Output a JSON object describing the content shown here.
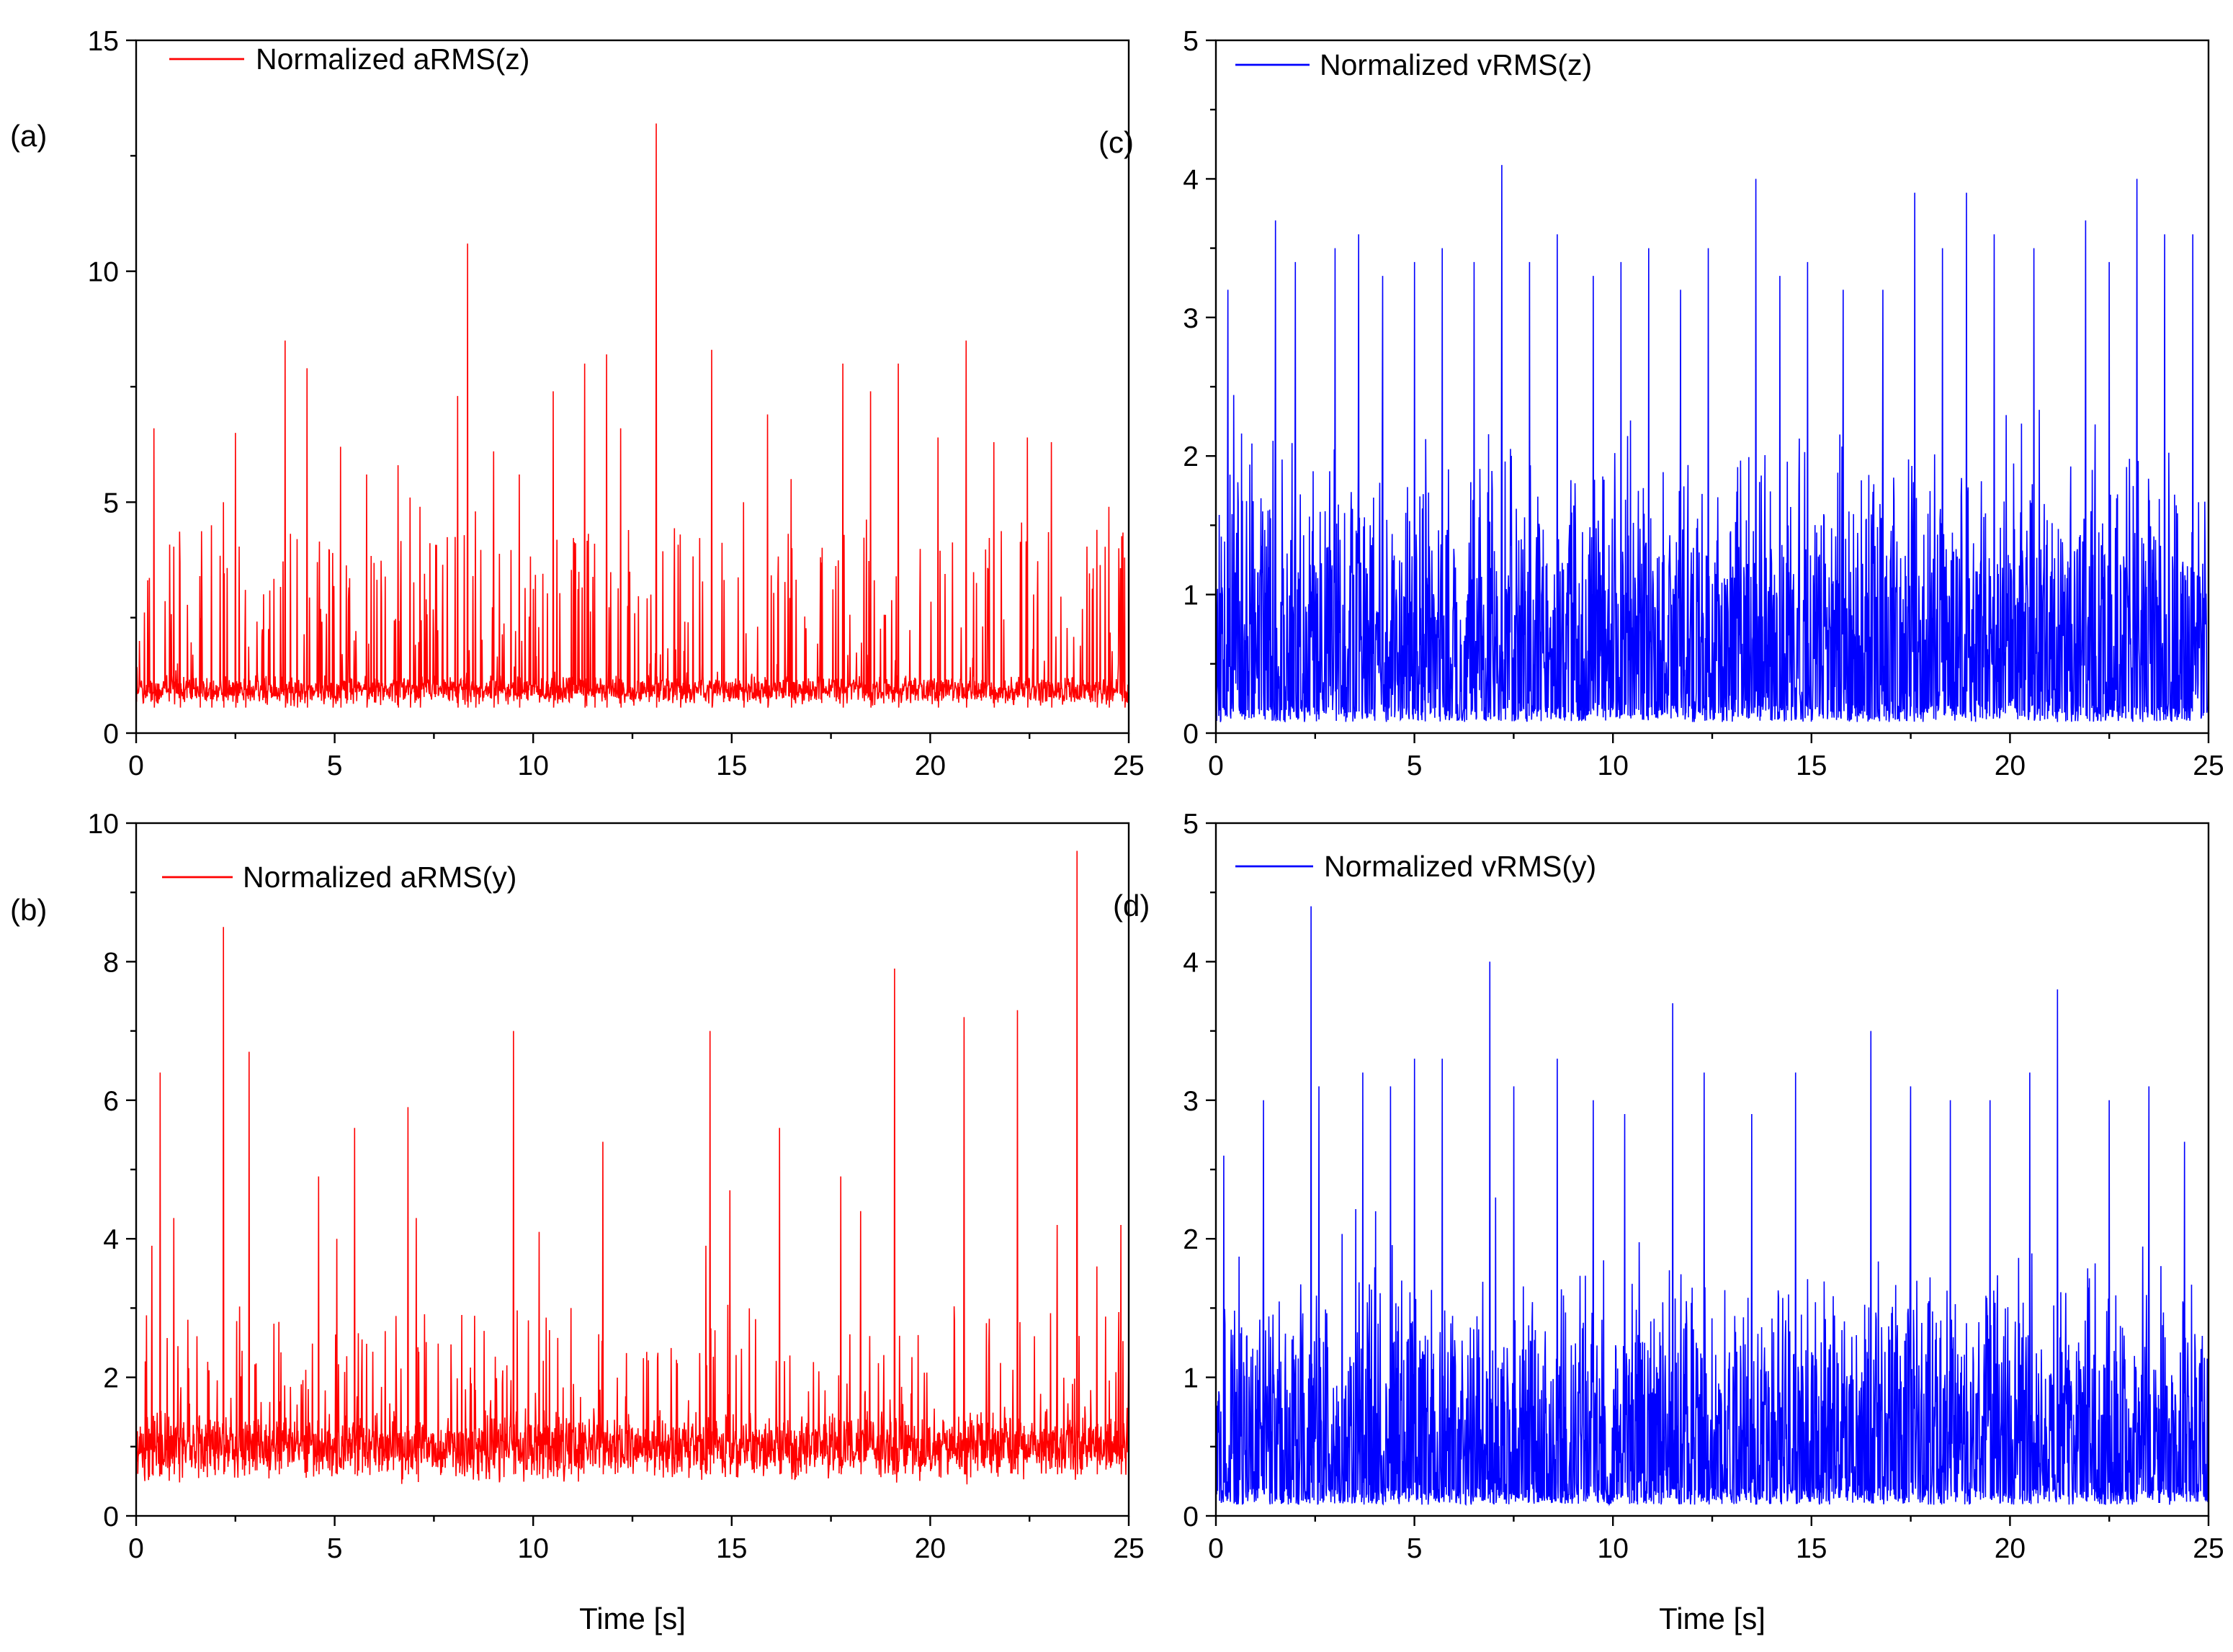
{
  "chart_data": [
    {
      "id": "a",
      "panel_label": "(a)",
      "type": "line",
      "title": "",
      "xlabel": "",
      "ylabel": "",
      "xlim": [
        0,
        25
      ],
      "ylim": [
        0,
        15
      ],
      "xticks": [
        "0",
        "5",
        "10",
        "15",
        "20",
        "25"
      ],
      "yticks": [
        "0",
        "5",
        "10",
        "15"
      ],
      "legend": "top-left",
      "color": "#ff0000",
      "signal": {
        "baseline": 0.92,
        "noise_amp": 0.35,
        "spike_rate": 0.12,
        "spike_max": 3.5,
        "seed": 11
      },
      "series": [
        {
          "name": "Normalized aRMS(z)",
          "peaks": [
            [
              0.45,
              6.6
            ],
            [
              1.1,
              3.7
            ],
            [
              1.6,
              3.4
            ],
            [
              1.9,
              4.5
            ],
            [
              2.2,
              5.0
            ],
            [
              2.5,
              6.5
            ],
            [
              2.75,
              3.1
            ],
            [
              3.75,
              8.5
            ],
            [
              4.05,
              4.2
            ],
            [
              4.3,
              7.9
            ],
            [
              4.95,
              3.9
            ],
            [
              5.15,
              6.2
            ],
            [
              5.8,
              5.6
            ],
            [
              6.6,
              5.8
            ],
            [
              6.9,
              5.1
            ],
            [
              7.15,
              4.9
            ],
            [
              8.1,
              7.3
            ],
            [
              8.35,
              10.6
            ],
            [
              8.55,
              4.8
            ],
            [
              9.0,
              6.1
            ],
            [
              9.65,
              5.6
            ],
            [
              10.5,
              7.4
            ],
            [
              11.3,
              8.0
            ],
            [
              11.55,
              4.1
            ],
            [
              11.85,
              8.2
            ],
            [
              12.2,
              6.6
            ],
            [
              13.1,
              13.2
            ],
            [
              13.7,
              4.3
            ],
            [
              14.5,
              8.3
            ],
            [
              15.3,
              5.0
            ],
            [
              15.9,
              6.9
            ],
            [
              16.5,
              5.5
            ],
            [
              17.8,
              8.0
            ],
            [
              18.5,
              7.4
            ],
            [
              19.2,
              8.0
            ],
            [
              20.2,
              6.4
            ],
            [
              20.9,
              8.5
            ],
            [
              21.6,
              6.3
            ],
            [
              22.45,
              6.4
            ],
            [
              23.05,
              6.3
            ],
            [
              24.2,
              4.4
            ],
            [
              24.5,
              4.9
            ],
            [
              24.9,
              3.8
            ]
          ]
        }
      ]
    },
    {
      "id": "b",
      "panel_label": "(b)",
      "type": "line",
      "title": "",
      "xlabel": "Time [s]",
      "ylabel": "",
      "xlim": [
        0,
        25
      ],
      "ylim": [
        0,
        10
      ],
      "xticks": [
        "0",
        "5",
        "10",
        "15",
        "20",
        "25"
      ],
      "yticks": [
        "0",
        "2",
        "4",
        "6",
        "8",
        "10"
      ],
      "legend": "top-left",
      "color": "#ff0000",
      "signal": {
        "baseline": 1.0,
        "noise_amp": 0.55,
        "spike_rate": 0.1,
        "spike_max": 1.8,
        "seed": 23
      },
      "series": [
        {
          "name": "Normalized aRMS(y)",
          "peaks": [
            [
              0.4,
              3.9
            ],
            [
              0.6,
              6.4
            ],
            [
              0.95,
              4.3
            ],
            [
              2.2,
              8.5
            ],
            [
              2.85,
              6.7
            ],
            [
              3.6,
              2.8
            ],
            [
              4.6,
              4.9
            ],
            [
              5.05,
              4.0
            ],
            [
              5.5,
              5.6
            ],
            [
              6.85,
              5.9
            ],
            [
              7.05,
              4.3
            ],
            [
              8.2,
              2.9
            ],
            [
              9.5,
              7.0
            ],
            [
              10.15,
              4.1
            ],
            [
              10.95,
              3.0
            ],
            [
              11.75,
              5.4
            ],
            [
              14.35,
              3.9
            ],
            [
              14.45,
              7.0
            ],
            [
              14.95,
              4.7
            ],
            [
              16.2,
              5.6
            ],
            [
              17.75,
              4.9
            ],
            [
              18.25,
              4.4
            ],
            [
              19.1,
              7.9
            ],
            [
              20.85,
              7.2
            ],
            [
              22.2,
              7.3
            ],
            [
              23.2,
              4.2
            ],
            [
              23.7,
              9.6
            ],
            [
              24.2,
              3.6
            ],
            [
              24.8,
              4.2
            ]
          ]
        }
      ]
    },
    {
      "id": "c",
      "panel_label": "(c)",
      "type": "line",
      "title": "",
      "xlabel": "",
      "ylabel": "",
      "xlim": [
        0,
        25
      ],
      "ylim": [
        0,
        5
      ],
      "xticks": [
        "0",
        "5",
        "10",
        "15",
        "20",
        "25"
      ],
      "yticks": [
        "0",
        "1",
        "2",
        "3",
        "4",
        "5"
      ],
      "legend": "top-left",
      "color": "#0000ff",
      "signal": {
        "baseline": 0.5,
        "noise_amp": 1.75,
        "spike_rate": 0.05,
        "spike_max": 0.9,
        "seed": 37
      },
      "series": [
        {
          "name": "Normalized vRMS(z)",
          "peaks": [
            [
              0.3,
              3.2
            ],
            [
              1.5,
              3.7
            ],
            [
              2.0,
              3.4
            ],
            [
              3.0,
              3.5
            ],
            [
              3.6,
              3.6
            ],
            [
              4.2,
              3.3
            ],
            [
              5.0,
              3.4
            ],
            [
              5.7,
              3.5
            ],
            [
              6.5,
              3.4
            ],
            [
              7.2,
              4.1
            ],
            [
              7.9,
              3.4
            ],
            [
              8.6,
              3.6
            ],
            [
              9.5,
              3.3
            ],
            [
              10.2,
              3.4
            ],
            [
              10.9,
              3.5
            ],
            [
              11.7,
              3.2
            ],
            [
              12.4,
              3.5
            ],
            [
              13.6,
              4.0
            ],
            [
              14.2,
              3.3
            ],
            [
              14.9,
              3.4
            ],
            [
              15.8,
              3.2
            ],
            [
              16.8,
              3.2
            ],
            [
              17.6,
              3.9
            ],
            [
              18.3,
              3.5
            ],
            [
              18.9,
              3.9
            ],
            [
              19.6,
              3.6
            ],
            [
              20.6,
              3.5
            ],
            [
              21.9,
              3.7
            ],
            [
              22.5,
              3.4
            ],
            [
              23.2,
              4.0
            ],
            [
              23.9,
              3.6
            ],
            [
              24.6,
              3.6
            ]
          ]
        }
      ]
    },
    {
      "id": "d",
      "panel_label": "(d)",
      "type": "line",
      "title": "",
      "xlabel": "Time [s]",
      "ylabel": "",
      "xlim": [
        0,
        25
      ],
      "ylim": [
        0,
        5
      ],
      "xticks": [
        "0",
        "5",
        "10",
        "15",
        "20",
        "25"
      ],
      "yticks": [
        "0",
        "1",
        "2",
        "3",
        "4",
        "5"
      ],
      "legend": "top-left",
      "color": "#0000ff",
      "signal": {
        "baseline": 0.4,
        "noise_amp": 1.55,
        "spike_rate": 0.05,
        "spike_max": 0.8,
        "seed": 53
      },
      "series": [
        {
          "name": "Normalized vRMS(y)",
          "peaks": [
            [
              0.2,
              2.6
            ],
            [
              1.2,
              3.0
            ],
            [
              2.4,
              4.4
            ],
            [
              2.6,
              3.1
            ],
            [
              3.7,
              3.2
            ],
            [
              4.4,
              3.1
            ],
            [
              5.0,
              3.3
            ],
            [
              5.7,
              3.3
            ],
            [
              6.9,
              4.0
            ],
            [
              7.5,
              3.1
            ],
            [
              8.6,
              3.3
            ],
            [
              9.5,
              3.0
            ],
            [
              10.3,
              2.9
            ],
            [
              11.5,
              3.7
            ],
            [
              12.3,
              3.2
            ],
            [
              13.5,
              2.9
            ],
            [
              14.6,
              3.2
            ],
            [
              16.5,
              3.5
            ],
            [
              17.5,
              3.1
            ],
            [
              18.5,
              3.0
            ],
            [
              19.5,
              3.0
            ],
            [
              20.5,
              3.2
            ],
            [
              21.2,
              3.8
            ],
            [
              22.5,
              3.0
            ],
            [
              23.5,
              3.1
            ],
            [
              24.4,
              2.7
            ]
          ]
        }
      ]
    }
  ]
}
